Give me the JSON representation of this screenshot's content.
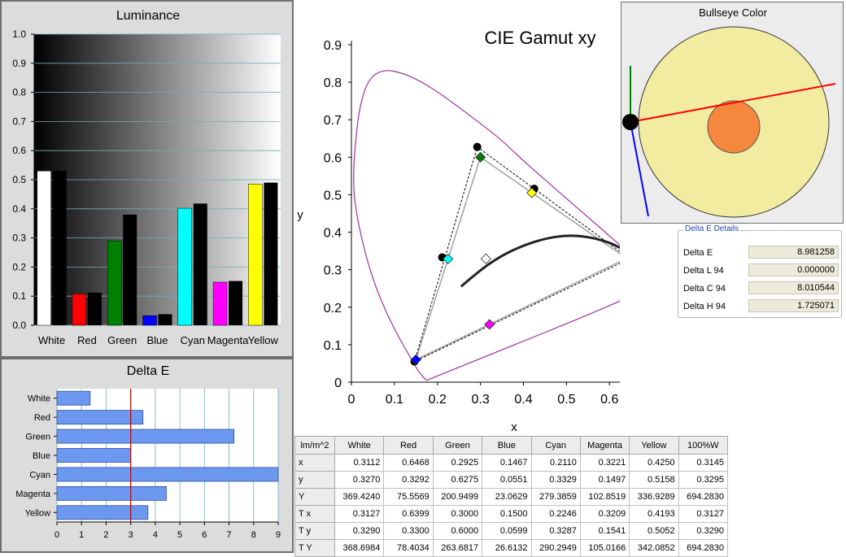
{
  "luminance": {
    "chart_data": {
      "type": "bar",
      "title": "Luminance",
      "categories": [
        "White",
        "Red",
        "Green",
        "Blue",
        "Cyan",
        "Magenta",
        "Yellow"
      ],
      "series": [
        {
          "values": [
            0.53,
            0.108,
            0.29,
            0.033,
            0.402,
            0.148,
            0.485
          ],
          "colors": [
            "#ffffff",
            "#ff0000",
            "#008000",
            "#0000ff",
            "#00ffff",
            "#ff00ff",
            "#ffff00"
          ]
        },
        {
          "values": [
            0.53,
            0.112,
            0.38,
            0.038,
            0.418,
            0.152,
            0.49
          ],
          "color": "#000000"
        }
      ],
      "ylim": [
        0,
        1.0
      ],
      "yticks": [
        "0.0",
        "0.1",
        "0.2",
        "0.3",
        "0.4",
        "0.5",
        "0.6",
        "0.7",
        "0.8",
        "0.9",
        "1.0"
      ],
      "grid": true,
      "background": "grayscale gradient"
    }
  },
  "delta_e": {
    "chart_data": {
      "type": "bar",
      "orientation": "horizontal",
      "title": "Delta E",
      "categories": [
        "White",
        "Red",
        "Green",
        "Blue",
        "Cyan",
        "Magenta",
        "Yellow"
      ],
      "values": [
        1.35,
        3.5,
        7.2,
        3.0,
        9.0,
        4.45,
        3.7
      ],
      "xlim": [
        0,
        9
      ],
      "xticks": [
        "0",
        "1",
        "2",
        "3",
        "4",
        "5",
        "6",
        "7",
        "8",
        "9"
      ],
      "threshold": 3,
      "bar_color": "#6d98ef",
      "threshold_color": "#c00000"
    }
  },
  "cie": {
    "chart_data": {
      "type": "scatter",
      "title": "CIE Gamut xy",
      "xlabel": "x",
      "ylabel": "y",
      "xlim": [
        0,
        0.8
      ],
      "ylim": [
        0,
        0.9
      ],
      "xticks": [
        "0",
        "0.1",
        "0.2",
        "0.3",
        "0.4",
        "0.5",
        "0.6",
        "0.7",
        "0.8"
      ],
      "yticks": [
        "0",
        "0.1",
        "0.2",
        "0.3",
        "0.4",
        "0.5",
        "0.6",
        "0.7",
        "0.8",
        "0.9"
      ],
      "locus": [
        [
          0.175,
          0.005
        ],
        [
          0.16,
          0.02
        ],
        [
          0.14,
          0.06
        ],
        [
          0.1,
          0.14
        ],
        [
          0.06,
          0.24
        ],
        [
          0.03,
          0.35
        ],
        [
          0.008,
          0.47
        ],
        [
          0.004,
          0.55
        ],
        [
          0.01,
          0.65
        ],
        [
          0.02,
          0.74
        ],
        [
          0.04,
          0.81
        ],
        [
          0.074,
          0.834
        ],
        [
          0.115,
          0.826
        ],
        [
          0.155,
          0.806
        ],
        [
          0.2,
          0.775
        ],
        [
          0.25,
          0.733
        ],
        [
          0.3,
          0.69
        ],
        [
          0.35,
          0.645
        ],
        [
          0.4,
          0.59
        ],
        [
          0.45,
          0.54
        ],
        [
          0.5,
          0.49
        ],
        [
          0.55,
          0.44
        ],
        [
          0.6,
          0.39
        ],
        [
          0.65,
          0.34
        ],
        [
          0.7,
          0.29
        ],
        [
          0.735,
          0.265
        ],
        [
          0.175,
          0.005
        ]
      ],
      "target_triangle": [
        [
          0.64,
          0.33
        ],
        [
          0.3,
          0.6
        ],
        [
          0.15,
          0.06
        ]
      ],
      "measured_triangle": [
        [
          0.6468,
          0.3292
        ],
        [
          0.2925,
          0.6275
        ],
        [
          0.1467,
          0.0551
        ]
      ],
      "planckian": [
        [
          0.255,
          0.255
        ],
        [
          0.3,
          0.3
        ],
        [
          0.35,
          0.338
        ],
        [
          0.4,
          0.365
        ],
        [
          0.45,
          0.383
        ],
        [
          0.5,
          0.392
        ],
        [
          0.55,
          0.388
        ],
        [
          0.6,
          0.373
        ],
        [
          0.63,
          0.355
        ],
        [
          0.65,
          0.345
        ]
      ],
      "targets": [
        {
          "x": 0.3127,
          "y": 0.329,
          "color": "#ffffff"
        },
        {
          "x": 0.6399,
          "y": 0.33,
          "color": "#ff0000"
        },
        {
          "x": 0.3,
          "y": 0.6,
          "color": "#008000"
        },
        {
          "x": 0.15,
          "y": 0.06,
          "color": "#0000ff"
        },
        {
          "x": 0.2246,
          "y": 0.3287,
          "color": "#00ffff"
        },
        {
          "x": 0.3209,
          "y": 0.1541,
          "color": "#ff00ff"
        },
        {
          "x": 0.4193,
          "y": 0.5052,
          "color": "#ffff00"
        }
      ],
      "measured": [
        {
          "x": 0.6468,
          "y": 0.3292
        },
        {
          "x": 0.2925,
          "y": 0.6275
        },
        {
          "x": 0.1467,
          "y": 0.0551
        },
        {
          "x": 0.211,
          "y": 0.3329
        },
        {
          "x": 0.425,
          "y": 0.5158
        }
      ]
    }
  },
  "bullseye": {
    "title": "Bullseye Color"
  },
  "delta_e_details": {
    "title": "Delta E Details",
    "rows": [
      {
        "label": "Delta E",
        "value": "8.981258"
      },
      {
        "label": "Delta L 94",
        "value": "0.000000"
      },
      {
        "label": "Delta C 94",
        "value": "8.010544"
      },
      {
        "label": "Delta H 94",
        "value": "1.725071"
      }
    ]
  },
  "table": {
    "headers": [
      "lm/m^2",
      "White",
      "Red",
      "Green",
      "Blue",
      "Cyan",
      "Magenta",
      "Yellow",
      "100%W"
    ],
    "rows": [
      [
        "x",
        "0.3112",
        "0.6468",
        "0.2925",
        "0.1467",
        "0.2110",
        "0.3221",
        "0.4250",
        "0.3145"
      ],
      [
        "y",
        "0.3270",
        "0.3292",
        "0.6275",
        "0.0551",
        "0.3329",
        "0.1497",
        "0.5158",
        "0.3295"
      ],
      [
        "Y",
        "369.4240",
        "75.5569",
        "200.9499",
        "23.0629",
        "279.3859",
        "102.8519",
        "336.9289",
        "694.2830"
      ],
      [
        "T x",
        "0.3127",
        "0.6399",
        "0.3000",
        "0.1500",
        "0.2246",
        "0.3209",
        "0.4193",
        "0.3127"
      ],
      [
        "T y",
        "0.3290",
        "0.3300",
        "0.6000",
        "0.0599",
        "0.3287",
        "0.1541",
        "0.5052",
        "0.3290"
      ],
      [
        "T Y",
        "368.6984",
        "78.4034",
        "263.6817",
        "26.6132",
        "290.2949",
        "105.0166",
        "342.0852",
        "694.2830"
      ]
    ]
  }
}
